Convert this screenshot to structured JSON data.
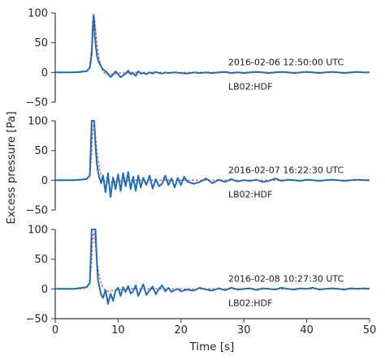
{
  "chart_data": {
    "type": "line",
    "ylabel": "Excess pressure [Pa]",
    "xlabel": "Time [s]",
    "xlim": [
      0,
      50
    ],
    "ylim": [
      -50,
      100
    ],
    "x_ticks": [
      0,
      10,
      20,
      30,
      40,
      50
    ],
    "y_ticks": [
      -50,
      0,
      50,
      100
    ],
    "grid": false,
    "colors": {
      "measured": "#1f6db3",
      "model": "#e06464"
    },
    "panels": [
      {
        "timestamp": "2016-02-06 12:50:00 UTC",
        "station": "LB02:HDF",
        "measured": {
          "x": [
            0,
            3,
            5,
            5.5,
            5.8,
            6.0,
            6.1,
            6.2,
            6.3,
            6.5,
            6.7,
            6.9,
            7.1,
            7.3,
            7.6,
            8.0,
            8.4,
            8.8,
            9.2,
            9.6,
            10.0,
            10.4,
            10.8,
            11.2,
            11.6,
            12.0,
            12.4,
            12.8,
            13.2,
            13.6,
            14.0,
            14.5,
            15.0,
            15.5,
            16.0,
            16.5,
            17.0,
            17.5,
            18.0,
            19.0,
            20.0,
            21.0,
            22.0,
            23.0,
            24.0,
            25.0,
            26.0,
            27.0,
            28.0,
            29.0,
            30.0,
            31.0,
            32.0,
            33.0,
            34.0,
            35.0,
            36.0,
            37.0,
            38.0,
            39.0,
            40.0,
            41.0,
            42.0,
            43.0,
            44.0,
            45.0,
            46.0,
            47.0,
            48.0,
            49.0,
            50.0
          ],
          "y": [
            0,
            0,
            2,
            8,
            30,
            80,
            97,
            85,
            60,
            40,
            25,
            18,
            14,
            10,
            5,
            2,
            -2,
            -8,
            -4,
            2,
            -3,
            -8,
            -5,
            -2,
            3,
            -3,
            -1,
            -6,
            2,
            -2,
            -1,
            -3,
            0,
            -2,
            1,
            -1,
            -2,
            0,
            -1,
            0,
            -1,
            -2,
            0,
            -1,
            0,
            -1,
            0,
            1,
            -1,
            0,
            -1,
            0,
            1,
            0,
            -1,
            0,
            1,
            0,
            -1,
            0,
            1,
            0,
            -1,
            0,
            1,
            0,
            -1,
            0,
            1,
            0,
            0
          ]
        },
        "model": {
          "x": [
            0,
            4,
            5,
            5.5,
            5.8,
            6.0,
            6.2,
            6.4,
            6.6,
            6.8,
            7.0,
            7.3,
            7.6,
            8.0,
            8.5,
            9.0,
            9.5,
            10.0,
            11.0,
            12.0,
            14.0,
            18.0,
            50.0
          ],
          "y": [
            0,
            0,
            2,
            10,
            45,
            90,
            95,
            75,
            52,
            35,
            22,
            10,
            2,
            -3,
            -4,
            -3,
            -2,
            -1,
            -1,
            0,
            0,
            0,
            0
          ]
        }
      },
      {
        "timestamp": "2016-02-07 16:22:30 UTC",
        "station": "LB02:HDF",
        "measured": {
          "x": [
            0,
            3,
            5,
            5.5,
            5.8,
            6.0,
            6.2,
            6.4,
            6.6,
            6.8,
            7.0,
            7.3,
            7.6,
            8.0,
            8.4,
            8.8,
            9.2,
            9.6,
            10.0,
            10.4,
            10.8,
            11.2,
            11.6,
            12.0,
            12.4,
            12.8,
            13.2,
            13.6,
            14.0,
            14.5,
            15.0,
            15.5,
            16.0,
            16.5,
            17.0,
            17.5,
            18.0,
            18.5,
            19.0,
            19.5,
            20.0,
            20.5,
            21.0,
            22.0,
            23.0,
            24.0,
            25.0,
            26.0,
            27.0,
            28.0,
            29.0,
            30.0,
            31.0,
            32.0,
            33.0,
            34.0,
            35.0,
            36.0,
            37.0,
            38.0,
            39.0,
            40.0,
            41.0,
            42.0,
            43.0,
            44.0,
            45.0,
            46.0,
            47.0,
            48.0,
            49.0,
            50.0
          ],
          "y": [
            0,
            0,
            2,
            8,
            100,
            100,
            100,
            60,
            30,
            15,
            5,
            -5,
            8,
            -20,
            12,
            -28,
            5,
            -15,
            10,
            -18,
            12,
            -10,
            14,
            -15,
            6,
            -18,
            8,
            -12,
            4,
            -8,
            8,
            -14,
            2,
            -10,
            -6,
            8,
            -8,
            3,
            -12,
            4,
            -8,
            6,
            -2,
            -6,
            -3,
            3,
            -5,
            1,
            -3,
            2,
            -2,
            0,
            -1,
            1,
            -3,
            -1,
            3,
            -1,
            1,
            0,
            -1,
            1,
            0,
            -1,
            0,
            1,
            0,
            -1,
            0,
            1,
            0,
            0
          ]
        },
        "model": {
          "x": [
            0,
            4,
            5,
            5.5,
            5.8,
            6.0,
            6.2,
            6.4,
            6.6,
            6.8,
            7.0,
            7.3,
            7.6,
            8.0,
            8.5,
            9.0,
            9.5,
            10.0,
            11.0,
            12.0,
            14.0,
            18.0,
            50.0
          ],
          "y": [
            0,
            0,
            2,
            10,
            45,
            90,
            95,
            75,
            52,
            35,
            22,
            10,
            2,
            -3,
            -4,
            -3,
            -2,
            -1,
            -1,
            0,
            0,
            0,
            0
          ]
        }
      },
      {
        "timestamp": "2016-02-08 10:27:30 UTC",
        "station": "LB02:HDF",
        "measured": {
          "x": [
            0,
            3,
            5,
            5.5,
            5.8,
            6.0,
            6.2,
            6.4,
            6.6,
            6.8,
            7.0,
            7.3,
            7.6,
            8.0,
            8.4,
            8.8,
            9.2,
            9.6,
            10.0,
            10.4,
            10.8,
            11.2,
            11.6,
            12.0,
            12.4,
            12.8,
            13.2,
            13.6,
            14.0,
            14.5,
            15.0,
            15.5,
            16.0,
            16.5,
            17.0,
            17.5,
            18.0,
            18.5,
            19.0,
            19.5,
            20.0,
            21.0,
            22.0,
            23.0,
            24.0,
            25.0,
            26.0,
            27.0,
            28.0,
            29.0,
            30.0,
            31.0,
            32.0,
            33.0,
            34.0,
            35.0,
            36.0,
            37.0,
            38.0,
            39.0,
            40.0,
            41.0,
            42.0,
            43.0,
            44.0,
            45.0,
            46.0,
            47.0,
            48.0,
            49.0,
            50.0
          ],
          "y": [
            0,
            0,
            3,
            10,
            100,
            100,
            100,
            100,
            50,
            15,
            5,
            -10,
            -15,
            -2,
            -25,
            -8,
            -20,
            -3,
            2,
            -12,
            3,
            -5,
            5,
            -8,
            -4,
            6,
            -12,
            -2,
            8,
            -10,
            -3,
            4,
            -9,
            0,
            6,
            -4,
            2,
            -5,
            -2,
            0,
            -4,
            -1,
            -3,
            2,
            -1,
            -3,
            1,
            -2,
            2,
            -1,
            0,
            1,
            -2,
            1,
            0,
            -1,
            2,
            0,
            -1,
            1,
            0,
            2,
            -1,
            0,
            1,
            0,
            -1,
            1,
            0,
            1,
            0
          ]
        },
        "model": {
          "x": [
            0,
            4,
            5,
            5.5,
            5.8,
            6.0,
            6.2,
            6.4,
            6.6,
            6.8,
            7.0,
            7.3,
            7.6,
            8.0,
            8.5,
            9.0,
            9.5,
            10.0,
            11.0,
            12.0,
            14.0,
            18.0,
            50.0
          ],
          "y": [
            0,
            0,
            2,
            10,
            45,
            90,
            95,
            75,
            52,
            35,
            22,
            10,
            2,
            -3,
            -4,
            -3,
            -2,
            -1,
            -1,
            0,
            0,
            0,
            0
          ]
        }
      }
    ]
  }
}
